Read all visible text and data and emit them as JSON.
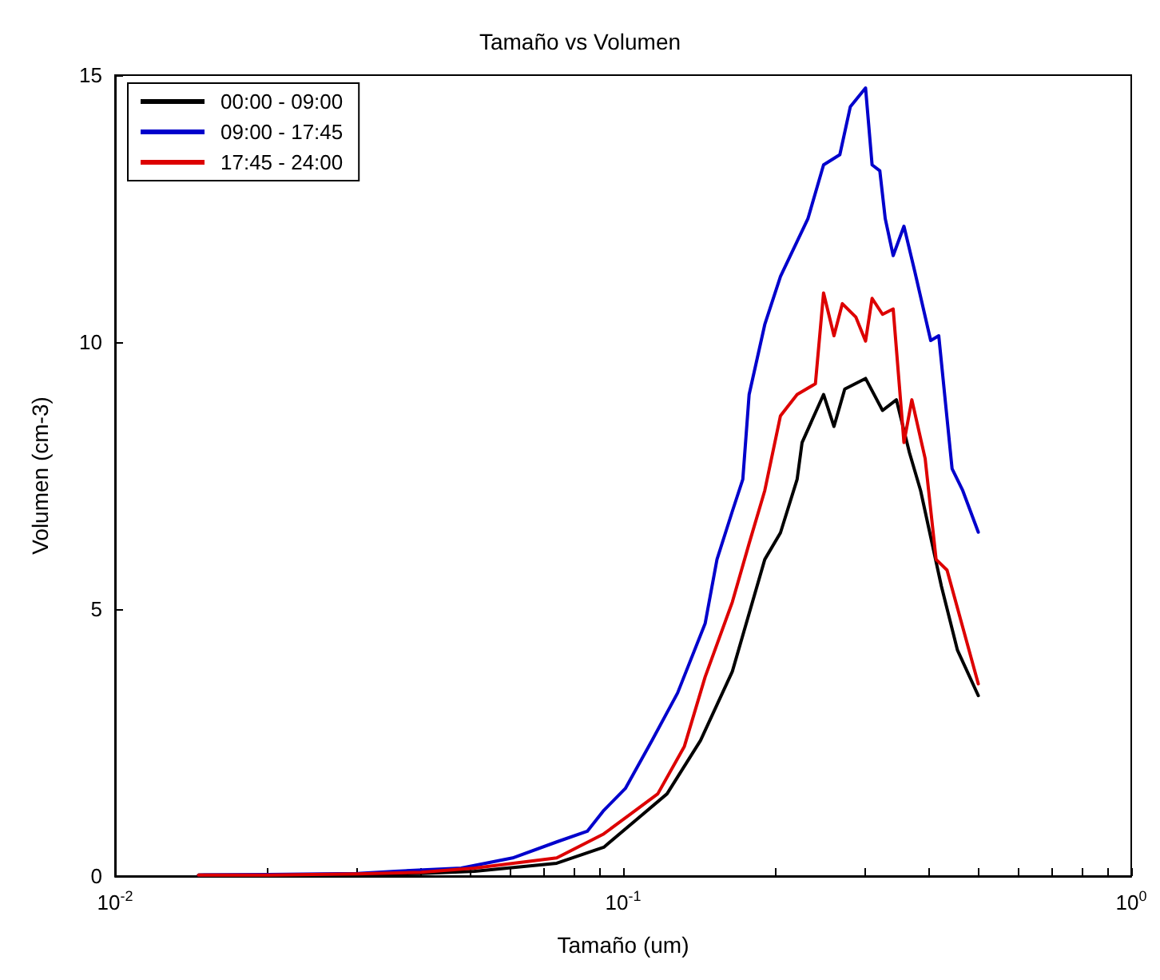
{
  "chart_data": {
    "type": "line",
    "title": "Tamaño vs Volumen",
    "xlabel": "Tamaño (um)",
    "ylabel": "Volumen (cm-3)",
    "log": "x",
    "grid": false,
    "legend": "top left",
    "marker": "none",
    "line_style": "solid",
    "xlim": [
      0.01,
      1
    ],
    "xticks": [
      {
        "value": 0.01,
        "label": "10$^{-2}$"
      },
      {
        "value": 0.02,
        "label": null
      },
      {
        "value": 0.03,
        "label": null
      },
      {
        "value": 0.04,
        "label": null
      },
      {
        "value": 0.05,
        "label": null
      },
      {
        "value": 0.06,
        "label": null
      },
      {
        "value": 0.07,
        "label": null
      },
      {
        "value": 0.08,
        "label": null
      },
      {
        "value": 0.09,
        "label": null
      },
      {
        "value": 0.1,
        "label": "10$^{-1}$"
      },
      {
        "value": 0.2,
        "label": null
      },
      {
        "value": 0.3,
        "label": null
      },
      {
        "value": 0.4,
        "label": null
      },
      {
        "value": 0.5,
        "label": null
      },
      {
        "value": 0.6,
        "label": null
      },
      {
        "value": 0.7,
        "label": null
      },
      {
        "value": 0.8,
        "label": null
      },
      {
        "value": 0.9,
        "label": null
      },
      {
        "value": 1,
        "label": "10$^{0}$"
      }
    ],
    "ylim": [
      0,
      15
    ],
    "yticks": [
      0,
      5,
      10,
      15
    ],
    "series": [
      {
        "name": "00:00 - 09:00",
        "color": "#000000",
        "x": [
          0.0146,
          0.02,
          0.03,
          0.04,
          0.051,
          0.074,
          0.0916,
          0.122,
          0.142,
          0.164,
          0.19,
          0.204,
          0.22,
          0.225,
          0.248,
          0.26,
          0.273,
          0.3,
          0.324,
          0.345,
          0.366,
          0.385,
          0.423,
          0.455,
          0.5
        ],
        "values": [
          0.02,
          0.02,
          0.03,
          0.05,
          0.09,
          0.24,
          0.54,
          1.54,
          2.54,
          3.83,
          5.93,
          6.43,
          7.43,
          8.12,
          9.02,
          8.42,
          9.12,
          9.32,
          8.72,
          8.92,
          7.93,
          7.22,
          5.43,
          4.23,
          3.38
        ]
      },
      {
        "name": "09:00 - 17:45",
        "color": "#0000cc",
        "x": [
          0.0146,
          0.02,
          0.03,
          0.0356,
          0.048,
          0.0606,
          0.074,
          0.085,
          0.0916,
          0.101,
          0.114,
          0.128,
          0.145,
          0.153,
          0.164,
          0.172,
          0.177,
          0.19,
          0.204,
          0.231,
          0.248,
          0.267,
          0.28,
          0.3,
          0.309,
          0.32,
          0.328,
          0.34,
          0.357,
          0.375,
          0.403,
          0.418,
          0.444,
          0.466,
          0.5
        ],
        "values": [
          0.02,
          0.03,
          0.05,
          0.09,
          0.15,
          0.34,
          0.64,
          0.84,
          1.23,
          1.64,
          2.54,
          3.43,
          4.73,
          5.93,
          6.83,
          7.43,
          9.02,
          10.33,
          11.23,
          12.31,
          13.32,
          13.51,
          14.41,
          14.76,
          13.32,
          13.21,
          12.31,
          11.62,
          12.17,
          11.32,
          10.03,
          10.12,
          7.63,
          7.22,
          6.44
        ]
      },
      {
        "name": "17:45 - 24:00",
        "color": "#dd0000",
        "x": [
          0.0146,
          0.02,
          0.03,
          0.04,
          0.051,
          0.074,
          0.0916,
          0.117,
          0.132,
          0.145,
          0.164,
          0.177,
          0.19,
          0.204,
          0.22,
          0.239,
          0.248,
          0.26,
          0.27,
          0.287,
          0.3,
          0.309,
          0.324,
          0.34,
          0.357,
          0.37,
          0.393,
          0.413,
          0.434,
          0.5
        ],
        "values": [
          0.02,
          0.02,
          0.04,
          0.07,
          0.15,
          0.34,
          0.79,
          1.54,
          2.43,
          3.73,
          5.13,
          6.23,
          7.22,
          8.62,
          9.02,
          9.22,
          10.92,
          10.12,
          10.72,
          10.47,
          10.02,
          10.82,
          10.52,
          10.62,
          8.12,
          8.92,
          7.82,
          5.93,
          5.73,
          3.6
        ]
      }
    ]
  }
}
